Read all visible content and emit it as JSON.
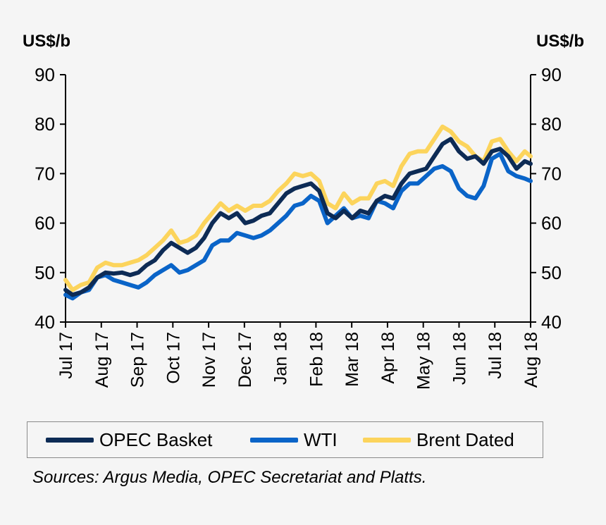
{
  "chart_data": {
    "type": "line",
    "ylabel_left": "US$/b",
    "ylabel_right": "US$/b",
    "ylim": [
      40,
      90
    ],
    "yticks": [
      40,
      50,
      60,
      70,
      80,
      90
    ],
    "x_ticks": [
      "Jul 17",
      "Aug 17",
      "Sep 17",
      "Oct 17",
      "Nov 17",
      "Dec 17",
      "Jan 18",
      "Feb 18",
      "Mar 18",
      "Apr 18",
      "May 18",
      "Jun 18",
      "Jul 18",
      "Aug 18"
    ],
    "x_start": "2017-07-01",
    "x_end": "2018-08-01",
    "grid": false,
    "legend_position": "bottom",
    "series": [
      {
        "name": "OPEC Basket",
        "color": "#0d2b55",
        "points": [
          [
            "2017-07-01",
            46.5
          ],
          [
            "2017-07-07",
            45.5
          ],
          [
            "2017-07-14",
            46.0
          ],
          [
            "2017-07-21",
            47.0
          ],
          [
            "2017-07-28",
            49.0
          ],
          [
            "2017-08-04",
            50.0
          ],
          [
            "2017-08-11",
            49.8
          ],
          [
            "2017-08-18",
            50.0
          ],
          [
            "2017-08-25",
            49.5
          ],
          [
            "2017-09-01",
            50.0
          ],
          [
            "2017-09-08",
            51.5
          ],
          [
            "2017-09-15",
            52.5
          ],
          [
            "2017-09-22",
            54.5
          ],
          [
            "2017-09-29",
            56.0
          ],
          [
            "2017-10-06",
            55.0
          ],
          [
            "2017-10-13",
            54.0
          ],
          [
            "2017-10-20",
            55.0
          ],
          [
            "2017-10-27",
            57.0
          ],
          [
            "2017-11-03",
            60.0
          ],
          [
            "2017-11-10",
            62.0
          ],
          [
            "2017-11-17",
            61.0
          ],
          [
            "2017-11-24",
            62.0
          ],
          [
            "2017-12-01",
            60.0
          ],
          [
            "2017-12-08",
            60.5
          ],
          [
            "2017-12-15",
            61.5
          ],
          [
            "2017-12-22",
            62.0
          ],
          [
            "2017-12-29",
            64.0
          ],
          [
            "2018-01-05",
            66.0
          ],
          [
            "2018-01-12",
            67.0
          ],
          [
            "2018-01-19",
            67.5
          ],
          [
            "2018-01-26",
            68.0
          ],
          [
            "2018-02-02",
            66.5
          ],
          [
            "2018-02-09",
            62.0
          ],
          [
            "2018-02-16",
            61.0
          ],
          [
            "2018-02-23",
            62.5
          ],
          [
            "2018-03-02",
            61.0
          ],
          [
            "2018-03-09",
            62.5
          ],
          [
            "2018-03-16",
            62.0
          ],
          [
            "2018-03-23",
            64.5
          ],
          [
            "2018-03-30",
            65.5
          ],
          [
            "2018-04-06",
            65.0
          ],
          [
            "2018-04-13",
            68.0
          ],
          [
            "2018-04-20",
            70.0
          ],
          [
            "2018-04-27",
            70.5
          ],
          [
            "2018-05-04",
            71.0
          ],
          [
            "2018-05-11",
            73.5
          ],
          [
            "2018-05-18",
            76.0
          ],
          [
            "2018-05-25",
            77.0
          ],
          [
            "2018-06-01",
            74.5
          ],
          [
            "2018-06-08",
            73.0
          ],
          [
            "2018-06-15",
            73.5
          ],
          [
            "2018-06-22",
            72.0
          ],
          [
            "2018-06-29",
            74.5
          ],
          [
            "2018-07-06",
            75.0
          ],
          [
            "2018-07-13",
            73.5
          ],
          [
            "2018-07-20",
            71.0
          ],
          [
            "2018-07-27",
            72.5
          ],
          [
            "2018-08-01",
            72.0
          ]
        ]
      },
      {
        "name": "WTI",
        "color": "#0a64c8",
        "points": [
          [
            "2017-07-01",
            45.5
          ],
          [
            "2017-07-07",
            44.8
          ],
          [
            "2017-07-14",
            46.0
          ],
          [
            "2017-07-21",
            46.5
          ],
          [
            "2017-07-28",
            49.0
          ],
          [
            "2017-08-04",
            49.5
          ],
          [
            "2017-08-11",
            48.5
          ],
          [
            "2017-08-18",
            48.0
          ],
          [
            "2017-08-25",
            47.5
          ],
          [
            "2017-09-01",
            47.0
          ],
          [
            "2017-09-08",
            48.0
          ],
          [
            "2017-09-15",
            49.5
          ],
          [
            "2017-09-22",
            50.5
          ],
          [
            "2017-09-29",
            51.5
          ],
          [
            "2017-10-06",
            50.0
          ],
          [
            "2017-10-13",
            50.5
          ],
          [
            "2017-10-20",
            51.5
          ],
          [
            "2017-10-27",
            52.5
          ],
          [
            "2017-11-03",
            55.5
          ],
          [
            "2017-11-10",
            56.5
          ],
          [
            "2017-11-17",
            56.5
          ],
          [
            "2017-11-24",
            58.0
          ],
          [
            "2017-12-01",
            57.5
          ],
          [
            "2017-12-08",
            57.0
          ],
          [
            "2017-12-15",
            57.5
          ],
          [
            "2017-12-22",
            58.5
          ],
          [
            "2017-12-29",
            60.0
          ],
          [
            "2018-01-05",
            61.5
          ],
          [
            "2018-01-12",
            63.5
          ],
          [
            "2018-01-19",
            64.0
          ],
          [
            "2018-01-26",
            65.5
          ],
          [
            "2018-02-02",
            64.5
          ],
          [
            "2018-02-09",
            60.0
          ],
          [
            "2018-02-16",
            61.5
          ],
          [
            "2018-02-23",
            63.0
          ],
          [
            "2018-03-02",
            61.0
          ],
          [
            "2018-03-09",
            61.5
          ],
          [
            "2018-03-16",
            61.0
          ],
          [
            "2018-03-23",
            64.5
          ],
          [
            "2018-03-30",
            64.0
          ],
          [
            "2018-04-06",
            63.0
          ],
          [
            "2018-04-13",
            66.5
          ],
          [
            "2018-04-20",
            68.0
          ],
          [
            "2018-04-27",
            68.0
          ],
          [
            "2018-05-04",
            69.5
          ],
          [
            "2018-05-11",
            71.0
          ],
          [
            "2018-05-18",
            71.5
          ],
          [
            "2018-05-25",
            70.5
          ],
          [
            "2018-06-01",
            67.0
          ],
          [
            "2018-06-08",
            65.5
          ],
          [
            "2018-06-15",
            65.0
          ],
          [
            "2018-06-22",
            67.5
          ],
          [
            "2018-06-29",
            73.0
          ],
          [
            "2018-07-06",
            74.0
          ],
          [
            "2018-07-13",
            70.5
          ],
          [
            "2018-07-20",
            69.5
          ],
          [
            "2018-07-27",
            69.0
          ],
          [
            "2018-08-01",
            68.5
          ]
        ]
      },
      {
        "name": "Brent Dated",
        "color": "#fcd45c",
        "points": [
          [
            "2017-07-01",
            48.5
          ],
          [
            "2017-07-07",
            46.5
          ],
          [
            "2017-07-14",
            47.5
          ],
          [
            "2017-07-21",
            48.0
          ],
          [
            "2017-07-28",
            51.0
          ],
          [
            "2017-08-04",
            52.0
          ],
          [
            "2017-08-11",
            51.5
          ],
          [
            "2017-08-18",
            51.5
          ],
          [
            "2017-08-25",
            52.0
          ],
          [
            "2017-09-01",
            52.5
          ],
          [
            "2017-09-08",
            53.5
          ],
          [
            "2017-09-15",
            55.0
          ],
          [
            "2017-09-22",
            56.5
          ],
          [
            "2017-09-29",
            58.5
          ],
          [
            "2017-10-06",
            56.0
          ],
          [
            "2017-10-13",
            56.5
          ],
          [
            "2017-10-20",
            57.5
          ],
          [
            "2017-10-27",
            60.0
          ],
          [
            "2017-11-03",
            62.0
          ],
          [
            "2017-11-10",
            64.0
          ],
          [
            "2017-11-17",
            62.5
          ],
          [
            "2017-11-24",
            63.5
          ],
          [
            "2017-12-01",
            62.5
          ],
          [
            "2017-12-08",
            63.5
          ],
          [
            "2017-12-15",
            63.5
          ],
          [
            "2017-12-22",
            64.5
          ],
          [
            "2017-12-29",
            66.5
          ],
          [
            "2018-01-05",
            68.0
          ],
          [
            "2018-01-12",
            70.0
          ],
          [
            "2018-01-19",
            69.5
          ],
          [
            "2018-01-26",
            70.0
          ],
          [
            "2018-02-02",
            68.5
          ],
          [
            "2018-02-09",
            64.0
          ],
          [
            "2018-02-16",
            63.0
          ],
          [
            "2018-02-23",
            66.0
          ],
          [
            "2018-03-02",
            64.0
          ],
          [
            "2018-03-09",
            65.0
          ],
          [
            "2018-03-16",
            65.0
          ],
          [
            "2018-03-23",
            68.0
          ],
          [
            "2018-03-30",
            68.5
          ],
          [
            "2018-04-06",
            67.5
          ],
          [
            "2018-04-13",
            71.5
          ],
          [
            "2018-04-20",
            74.0
          ],
          [
            "2018-04-27",
            74.5
          ],
          [
            "2018-05-04",
            74.5
          ],
          [
            "2018-05-11",
            77.0
          ],
          [
            "2018-05-18",
            79.5
          ],
          [
            "2018-05-25",
            78.5
          ],
          [
            "2018-06-01",
            76.5
          ],
          [
            "2018-06-08",
            75.5
          ],
          [
            "2018-06-15",
            73.5
          ],
          [
            "2018-06-22",
            72.5
          ],
          [
            "2018-06-29",
            76.5
          ],
          [
            "2018-07-06",
            77.0
          ],
          [
            "2018-07-13",
            74.5
          ],
          [
            "2018-07-20",
            72.5
          ],
          [
            "2018-07-27",
            74.5
          ],
          [
            "2018-08-01",
            73.5
          ]
        ]
      }
    ]
  },
  "legend": {
    "items": [
      {
        "label": "OPEC Basket",
        "color": "#0d2b55"
      },
      {
        "label": "WTI",
        "color": "#0a64c8"
      },
      {
        "label": "Brent Dated",
        "color": "#fcd45c"
      }
    ]
  },
  "source_note": "Sources: Argus Media, OPEC Secretariat and Platts."
}
